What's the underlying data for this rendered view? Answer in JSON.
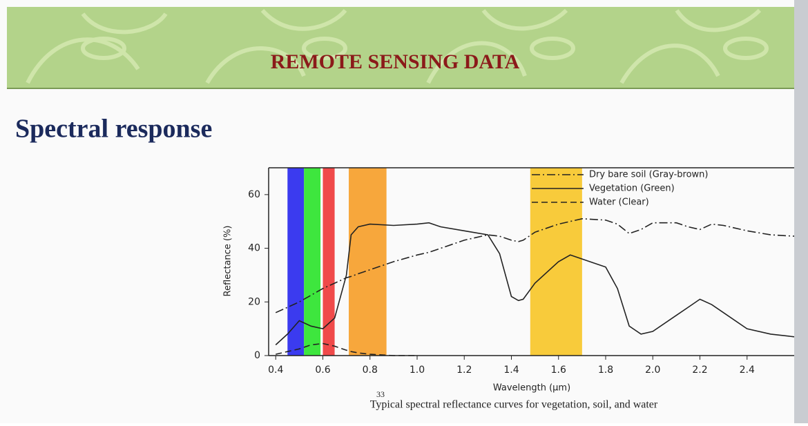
{
  "slide": {
    "header": "REMOTE SENSING DATA",
    "heading": "Spectral response",
    "page_number": "33"
  },
  "chart_data": {
    "type": "line",
    "caption": "Typical spectral reflectance curves for vegetation, soil, and water",
    "x_label": "Wavelength (μm)",
    "y_label": "Reflectance (%)",
    "xlim": [
      0.37,
      2.6
    ],
    "ylim": [
      0,
      70
    ],
    "xticks": [
      0.4,
      0.6,
      0.8,
      {
        "value": 1,
        "label": "1.0"
      },
      1.2,
      1.4,
      1.6,
      1.8,
      {
        "value": 2,
        "label": "2.0"
      },
      2.2,
      2.4
    ],
    "yticks": [
      0,
      20,
      40,
      60
    ],
    "legend": "top-right",
    "bands": [
      {
        "from": 0.45,
        "to": 0.52,
        "color": "#3b3bef"
      },
      {
        "from": 0.52,
        "to": 0.59,
        "color": "#3ee63e"
      },
      {
        "from": 0.6,
        "to": 0.65,
        "color": "#f04a4a"
      },
      {
        "from": 0.71,
        "to": 0.87,
        "color": "#f7a73c"
      },
      {
        "from": 1.48,
        "to": 1.7,
        "color": "#f8cb3b"
      }
    ],
    "x": [
      0.4,
      0.45,
      0.5,
      0.55,
      0.6,
      0.65,
      0.7,
      0.72,
      0.75,
      0.8,
      0.9,
      1.0,
      1.05,
      1.1,
      1.2,
      1.3,
      1.35,
      1.4,
      1.43,
      1.45,
      1.5,
      1.6,
      1.65,
      1.7,
      1.8,
      1.85,
      1.9,
      1.95,
      2.0,
      2.1,
      2.15,
      2.2,
      2.25,
      2.3,
      2.4,
      2.5,
      2.6
    ],
    "series": [
      {
        "name": "Dry bare soil (Gray-brown)",
        "color": "#222222",
        "style": "dashdot",
        "values": [
          16,
          18,
          20,
          22.5,
          25,
          27,
          29,
          29.5,
          30.5,
          32,
          35,
          37.5,
          38.5,
          40,
          43,
          45,
          44.5,
          43,
          42.5,
          43,
          46,
          49,
          50,
          51,
          50.5,
          49,
          45.5,
          47,
          49.5,
          49.5,
          48,
          47,
          49,
          48.5,
          46.5,
          45,
          44.5
        ]
      },
      {
        "name": "Vegetation (Green)",
        "color": "#222222",
        "style": "solid",
        "values": [
          4,
          8,
          13,
          11,
          10,
          14,
          30,
          45,
          48,
          49,
          48.5,
          49,
          49.5,
          48,
          46.5,
          45,
          38,
          22,
          20.5,
          21,
          27,
          35,
          37.5,
          36,
          33,
          25,
          11,
          8,
          9,
          15,
          18,
          21,
          19,
          16,
          10,
          8,
          7
        ]
      },
      {
        "name": "Water (Clear)",
        "color": "#222222",
        "style": "dashed",
        "values": [
          0.5,
          1.5,
          2.5,
          4,
          4.5,
          3.5,
          2,
          1.5,
          1,
          0.5,
          0,
          0,
          null,
          null,
          null,
          null,
          null,
          null,
          null,
          null,
          null,
          null,
          null,
          null,
          null,
          null,
          null,
          null,
          null,
          null,
          null,
          null,
          null,
          null,
          null,
          null,
          null
        ]
      }
    ]
  }
}
